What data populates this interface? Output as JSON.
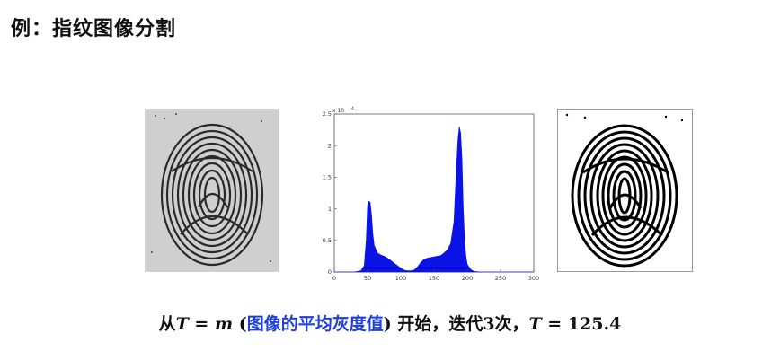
{
  "title": "例：指纹图像分割",
  "colors": {
    "bar_fill": "#0a12e6",
    "highlight": "#1f3fd8",
    "gray_background": "#cfcfcf"
  },
  "images": {
    "original": "grayscale fingerprint",
    "segmented": "binary fingerprint"
  },
  "chart_data": {
    "type": "area",
    "title": "",
    "xlabel": "",
    "ylabel": "",
    "exponent_label": "x 10",
    "exponent_power": "4",
    "xlim": [
      0,
      300
    ],
    "ylim": [
      0,
      2.5
    ],
    "xticks": [
      "0",
      "50",
      "100",
      "150",
      "200",
      "250",
      "300"
    ],
    "yticks": [
      "0",
      "0.5",
      "1",
      "1.5",
      "2",
      "2.5"
    ],
    "grid": false,
    "x": [
      0,
      30,
      40,
      45,
      48,
      50,
      52,
      54,
      56,
      58,
      60,
      65,
      70,
      75,
      80,
      90,
      100,
      105,
      110,
      115,
      120,
      125,
      130,
      135,
      140,
      150,
      160,
      165,
      170,
      175,
      180,
      183,
      186,
      188,
      190,
      192,
      194,
      196,
      198,
      200,
      205,
      210,
      220,
      300
    ],
    "y": [
      0,
      0,
      0.02,
      0.1,
      0.5,
      1.05,
      1.12,
      1.1,
      0.9,
      0.6,
      0.42,
      0.3,
      0.27,
      0.25,
      0.22,
      0.14,
      0.06,
      0.03,
      0.02,
      0.02,
      0.03,
      0.08,
      0.15,
      0.2,
      0.22,
      0.24,
      0.26,
      0.3,
      0.35,
      0.45,
      0.8,
      1.5,
      2.1,
      2.3,
      2.2,
      1.8,
      1.0,
      0.5,
      0.25,
      0.12,
      0.04,
      0.01,
      0,
      0
    ]
  },
  "caption": {
    "part1": "从",
    "T1": "T",
    "eq1": " = ",
    "m": "m",
    "open": " (",
    "highlight": "图像的平均灰度值",
    "close": ")",
    "part2": " 开始，迭代3次，",
    "T2": "T",
    "eq2": " = 125.4"
  }
}
